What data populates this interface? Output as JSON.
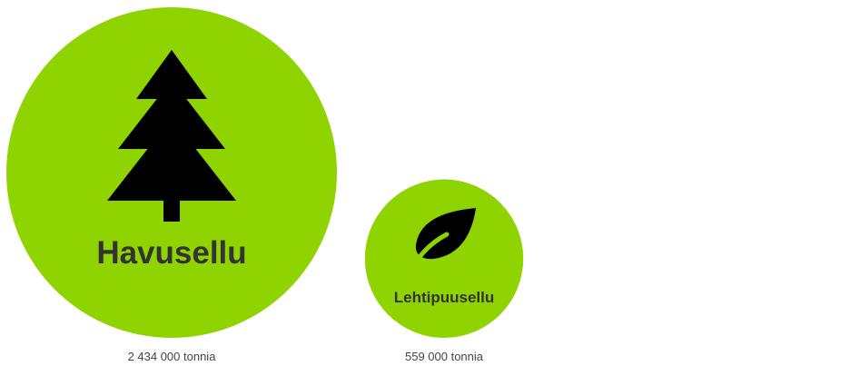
{
  "chart_data": {
    "type": "bubble",
    "unit": "tonnia",
    "categories": [
      "Havusellu",
      "Lehtipuusellu"
    ],
    "values": [
      2434000,
      559000
    ],
    "value_labels": [
      "2 434 000 tonnia",
      "559 000 tonnia"
    ],
    "icons": [
      "conifer-tree-icon",
      "leaf-icon"
    ],
    "title": "",
    "legend": "none",
    "grid": false,
    "colors": {
      "bubble": "#8fd400",
      "icon": "#000000",
      "category_text": "#333333",
      "value_text": "#444444"
    }
  }
}
